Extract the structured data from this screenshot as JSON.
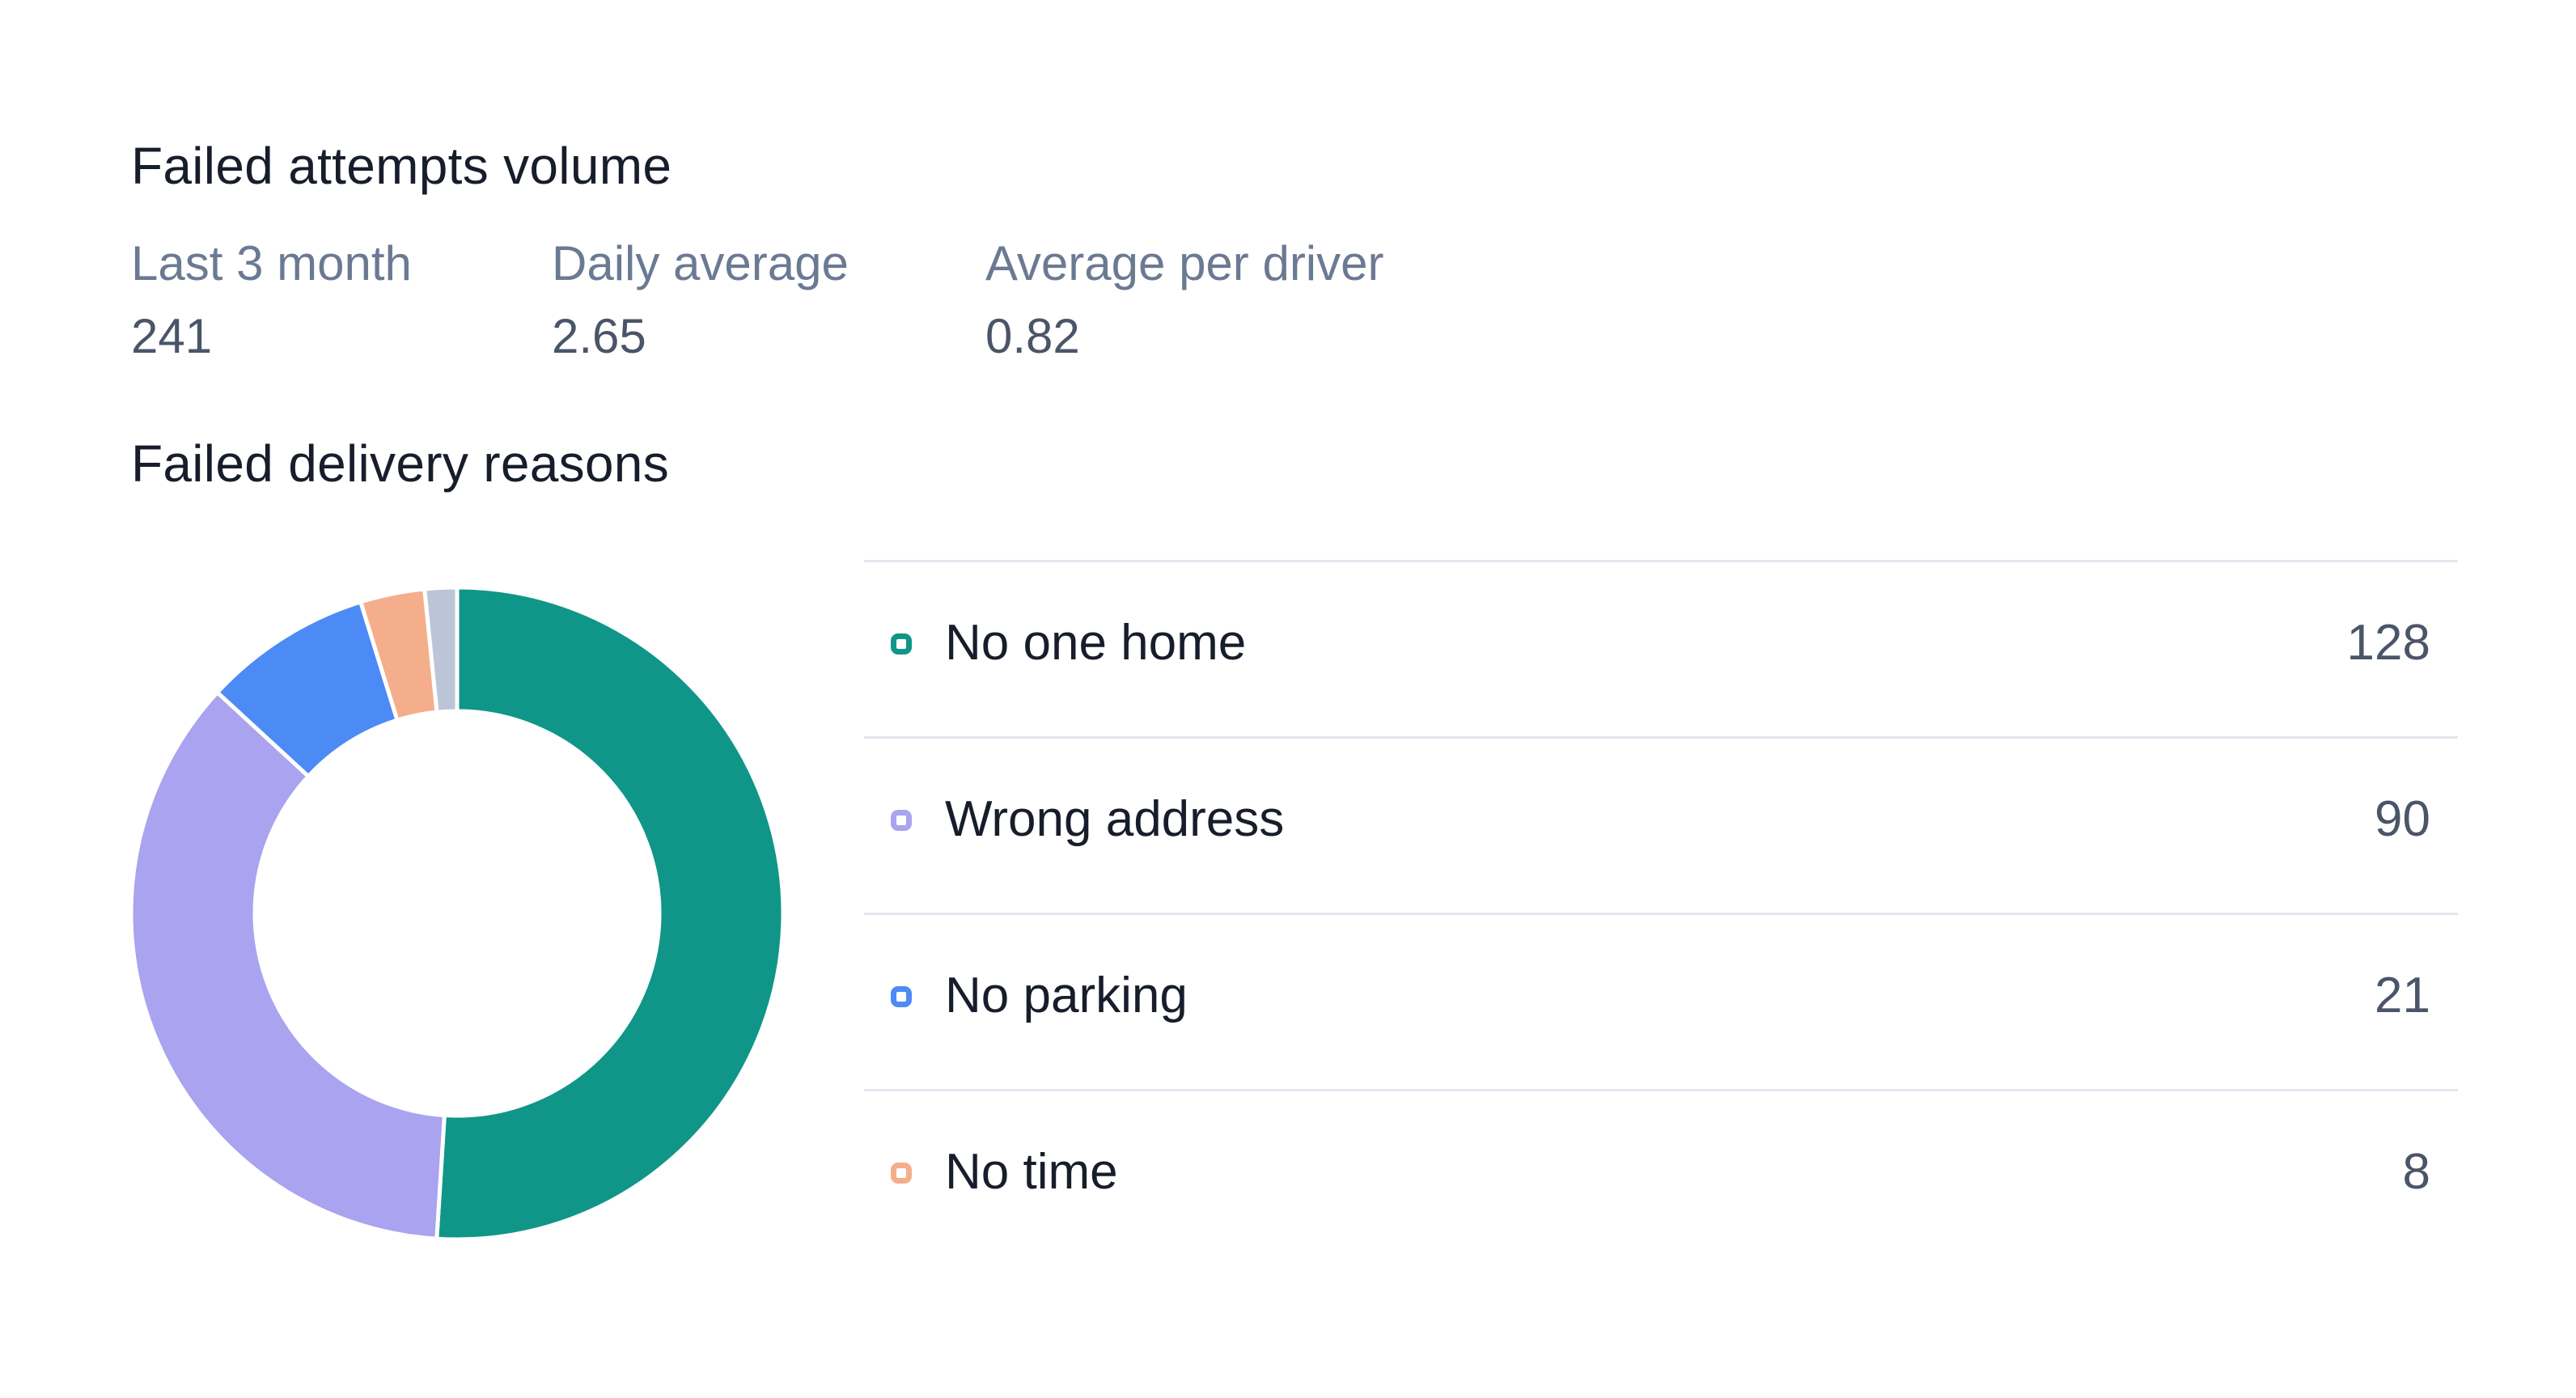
{
  "sections": {
    "volume_title": "Failed attempts volume",
    "reasons_title": "Failed delivery reasons"
  },
  "stats": [
    {
      "label": "Last 3 month",
      "value": "241"
    },
    {
      "label": "Daily average",
      "value": "2.65"
    },
    {
      "label": "Average per driver",
      "value": "0.82"
    }
  ],
  "legend": [
    {
      "label": "No one home",
      "value": "128",
      "color": "#0f9688"
    },
    {
      "label": "Wrong address",
      "value": "90",
      "color": "#a9a3f0"
    },
    {
      "label": "No parking",
      "value": "21",
      "color": "#4c8af6"
    },
    {
      "label": "No time",
      "value": "8",
      "color": "#f5ae8b"
    }
  ],
  "chart_data": {
    "type": "pie",
    "variant": "donut",
    "categories": [
      "No one home",
      "Wrong address",
      "No parking",
      "No time",
      ""
    ],
    "values": [
      128,
      90,
      21,
      8,
      4
    ],
    "colors": [
      "#0f9688",
      "#a9a3f0",
      "#4c8af6",
      "#f5ae8b",
      "#bcc5d8"
    ]
  }
}
